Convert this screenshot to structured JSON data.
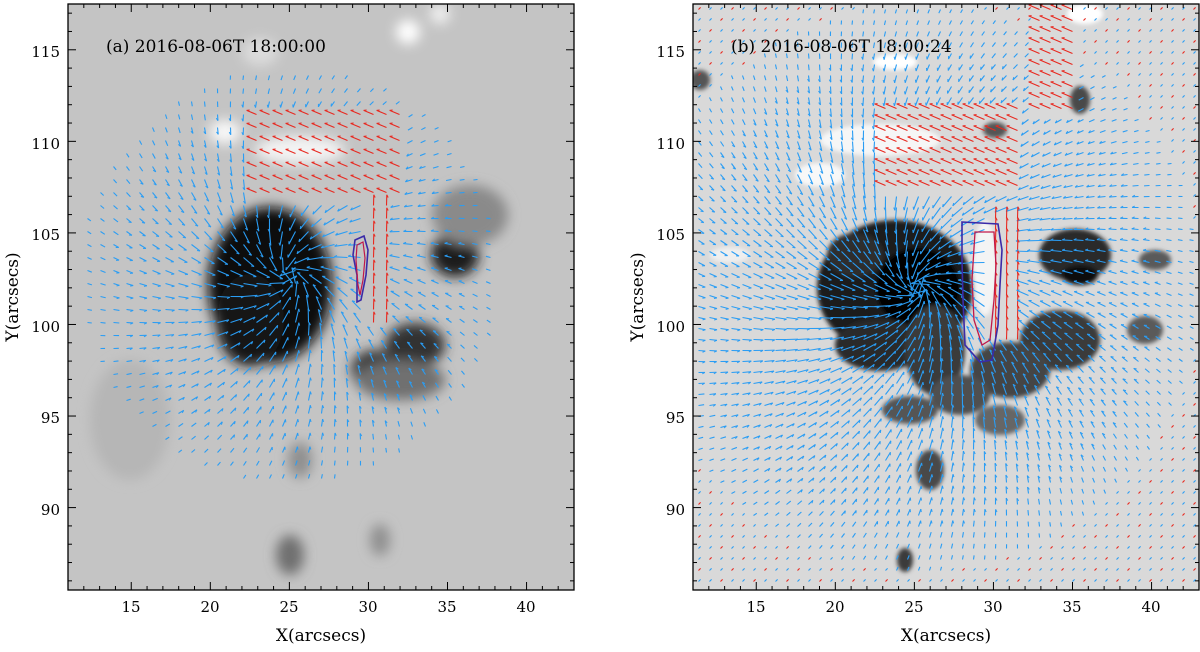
{
  "panels": [
    {
      "label": "(a) 2016-08-06T 18:00:00",
      "xlabel": "X(arcsecs)",
      "ylabel": "Y(arcsecs)",
      "x_ticks": [
        "15",
        "20",
        "25",
        "30",
        "35",
        "40"
      ],
      "y_ticks": [
        "90",
        "95",
        "100",
        "105",
        "110",
        "115"
      ],
      "xlim": [
        11,
        43
      ],
      "ylim": [
        85.5,
        117.5
      ],
      "image_style": "coarse"
    },
    {
      "label": "(b) 2016-08-06T 18:00:24",
      "xlabel": "X(arcsecs)",
      "ylabel": "Y(arcsecs)",
      "x_ticks": [
        "15",
        "20",
        "25",
        "30",
        "35",
        "40"
      ],
      "y_ticks": [
        "90",
        "95",
        "100",
        "105",
        "110",
        "115"
      ],
      "xlim": [
        11,
        43
      ],
      "ylim": [
        85.5,
        117.5
      ],
      "image_style": "fine"
    }
  ],
  "colors": {
    "vector_negative": "#2a9df4",
    "vector_positive": "#e8281f",
    "contour_outer": "#3a2aa8",
    "contour_inner": "#c0184a"
  }
}
